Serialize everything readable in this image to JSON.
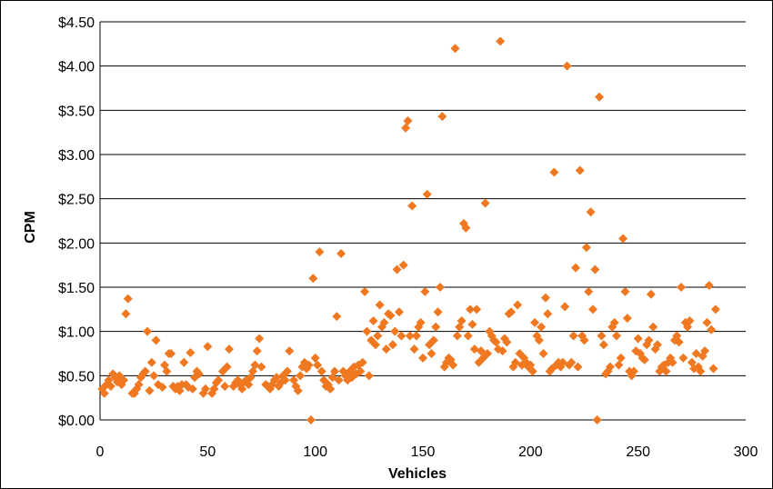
{
  "chart_data": {
    "type": "scatter",
    "title": "",
    "xlabel": "Vehicles",
    "ylabel": "CPM",
    "xlim": [
      0,
      300
    ],
    "ylim": [
      0,
      4.5
    ],
    "x_ticks": [
      0,
      50,
      100,
      150,
      200,
      250,
      300
    ],
    "x_tick_labels": [
      "0",
      "50",
      "100",
      "150",
      "200",
      "250",
      "300"
    ],
    "y_ticks": [
      0,
      0.5,
      1.0,
      1.5,
      2.0,
      2.5,
      3.0,
      3.5,
      4.0,
      4.5
    ],
    "y_tick_labels": [
      "$0.00",
      "$0.50",
      "$1.00",
      "$1.50",
      "$2.00",
      "$2.50",
      "$3.00",
      "$3.50",
      "$4.00",
      "$4.50"
    ],
    "grid": "horizontal",
    "marker_color": "#F07820",
    "marker_shape": "diamond",
    "points": [
      [
        1,
        0.35
      ],
      [
        2,
        0.3
      ],
      [
        3,
        0.4
      ],
      [
        4,
        0.45
      ],
      [
        5,
        0.38
      ],
      [
        6,
        0.52
      ],
      [
        7,
        0.48
      ],
      [
        8,
        0.43
      ],
      [
        9,
        0.5
      ],
      [
        10,
        0.4
      ],
      [
        11,
        0.45
      ],
      [
        12,
        1.2
      ],
      [
        13,
        1.37
      ],
      [
        15,
        0.3
      ],
      [
        16,
        0.3
      ],
      [
        17,
        0.35
      ],
      [
        18,
        0.4
      ],
      [
        19,
        0.48
      ],
      [
        20,
        0.52
      ],
      [
        21,
        0.55
      ],
      [
        22,
        1.0
      ],
      [
        23,
        0.33
      ],
      [
        24,
        0.65
      ],
      [
        25,
        0.5
      ],
      [
        26,
        0.9
      ],
      [
        27,
        0.4
      ],
      [
        29,
        0.37
      ],
      [
        30,
        0.62
      ],
      [
        31,
        0.55
      ],
      [
        32,
        0.75
      ],
      [
        33,
        0.75
      ],
      [
        34,
        0.38
      ],
      [
        35,
        0.35
      ],
      [
        36,
        0.38
      ],
      [
        37,
        0.33
      ],
      [
        38,
        0.4
      ],
      [
        39,
        0.65
      ],
      [
        40,
        0.4
      ],
      [
        41,
        0.37
      ],
      [
        42,
        0.76
      ],
      [
        43,
        0.35
      ],
      [
        44,
        0.48
      ],
      [
        45,
        0.55
      ],
      [
        46,
        0.52
      ],
      [
        48,
        0.3
      ],
      [
        49,
        0.35
      ],
      [
        50,
        0.83
      ],
      [
        52,
        0.3
      ],
      [
        53,
        0.35
      ],
      [
        54,
        0.42
      ],
      [
        55,
        0.45
      ],
      [
        57,
        0.55
      ],
      [
        58,
        0.38
      ],
      [
        59,
        0.6
      ],
      [
        60,
        0.8
      ],
      [
        62,
        0.38
      ],
      [
        63,
        0.42
      ],
      [
        64,
        0.45
      ],
      [
        65,
        0.4
      ],
      [
        66,
        0.35
      ],
      [
        67,
        0.43
      ],
      [
        68,
        0.45
      ],
      [
        69,
        0.4
      ],
      [
        70,
        0.48
      ],
      [
        71,
        0.55
      ],
      [
        72,
        0.62
      ],
      [
        73,
        0.78
      ],
      [
        74,
        0.92
      ],
      [
        75,
        0.6
      ],
      [
        77,
        0.4
      ],
      [
        78,
        0.38
      ],
      [
        79,
        0.35
      ],
      [
        80,
        0.4
      ],
      [
        81,
        0.45
      ],
      [
        82,
        0.48
      ],
      [
        83,
        0.38
      ],
      [
        84,
        0.42
      ],
      [
        85,
        0.5
      ],
      [
        86,
        0.45
      ],
      [
        87,
        0.55
      ],
      [
        88,
        0.78
      ],
      [
        90,
        0.45
      ],
      [
        91,
        0.38
      ],
      [
        92,
        0.33
      ],
      [
        93,
        0.5
      ],
      [
        94,
        0.6
      ],
      [
        95,
        0.65
      ],
      [
        96,
        0.58
      ],
      [
        97,
        0.62
      ],
      [
        98,
        0.0
      ],
      [
        99,
        1.6
      ],
      [
        100,
        0.7
      ],
      [
        101,
        0.62
      ],
      [
        102,
        1.9
      ],
      [
        103,
        0.55
      ],
      [
        104,
        0.45
      ],
      [
        105,
        0.38
      ],
      [
        106,
        0.4
      ],
      [
        107,
        0.35
      ],
      [
        108,
        0.48
      ],
      [
        109,
        0.55
      ],
      [
        110,
        1.17
      ],
      [
        111,
        0.45
      ],
      [
        112,
        1.88
      ],
      [
        113,
        0.55
      ],
      [
        114,
        0.5
      ],
      [
        115,
        0.45
      ],
      [
        116,
        0.55
      ],
      [
        117,
        0.48
      ],
      [
        118,
        0.6
      ],
      [
        119,
        0.52
      ],
      [
        120,
        0.62
      ],
      [
        121,
        0.55
      ],
      [
        122,
        0.65
      ],
      [
        123,
        1.45
      ],
      [
        124,
        1.0
      ],
      [
        125,
        0.5
      ],
      [
        126,
        0.9
      ],
      [
        127,
        1.12
      ],
      [
        128,
        0.85
      ],
      [
        129,
        0.95
      ],
      [
        130,
        1.3
      ],
      [
        131,
        1.05
      ],
      [
        132,
        1.1
      ],
      [
        133,
        0.8
      ],
      [
        134,
        1.2
      ],
      [
        135,
        1.18
      ],
      [
        136,
        0.85
      ],
      [
        137,
        1.0
      ],
      [
        138,
        1.7
      ],
      [
        139,
        1.22
      ],
      [
        140,
        0.95
      ],
      [
        141,
        1.75
      ],
      [
        142,
        3.3
      ],
      [
        143,
        3.38
      ],
      [
        144,
        0.95
      ],
      [
        145,
        2.42
      ],
      [
        146,
        0.8
      ],
      [
        147,
        0.95
      ],
      [
        148,
        1.05
      ],
      [
        149,
        1.1
      ],
      [
        150,
        0.7
      ],
      [
        151,
        1.45
      ],
      [
        152,
        2.55
      ],
      [
        153,
        0.85
      ],
      [
        154,
        0.75
      ],
      [
        155,
        0.9
      ],
      [
        156,
        1.05
      ],
      [
        157,
        1.22
      ],
      [
        158,
        1.5
      ],
      [
        159,
        3.43
      ],
      [
        160,
        0.6
      ],
      [
        161,
        0.65
      ],
      [
        162,
        0.7
      ],
      [
        163,
        0.68
      ],
      [
        164,
        0.62
      ],
      [
        165,
        4.2
      ],
      [
        166,
        0.95
      ],
      [
        167,
        1.05
      ],
      [
        168,
        1.12
      ],
      [
        169,
        2.22
      ],
      [
        170,
        2.17
      ],
      [
        171,
        0.95
      ],
      [
        172,
        1.25
      ],
      [
        173,
        1.08
      ],
      [
        174,
        0.8
      ],
      [
        175,
        1.25
      ],
      [
        176,
        0.65
      ],
      [
        177,
        0.78
      ],
      [
        178,
        0.7
      ],
      [
        179,
        2.45
      ],
      [
        180,
        0.75
      ],
      [
        181,
        1.0
      ],
      [
        182,
        0.95
      ],
      [
        183,
        0.9
      ],
      [
        184,
        0.88
      ],
      [
        185,
        0.8
      ],
      [
        186,
        4.28
      ],
      [
        187,
        0.78
      ],
      [
        188,
        0.92
      ],
      [
        189,
        0.88
      ],
      [
        190,
        1.2
      ],
      [
        191,
        1.22
      ],
      [
        192,
        0.6
      ],
      [
        193,
        0.65
      ],
      [
        194,
        1.3
      ],
      [
        195,
        0.75
      ],
      [
        196,
        0.62
      ],
      [
        197,
        0.7
      ],
      [
        198,
        0.65
      ],
      [
        199,
        0.6
      ],
      [
        200,
        0.62
      ],
      [
        201,
        0.55
      ],
      [
        202,
        1.1
      ],
      [
        203,
        0.95
      ],
      [
        204,
        0.9
      ],
      [
        205,
        1.05
      ],
      [
        206,
        0.75
      ],
      [
        207,
        1.38
      ],
      [
        208,
        1.2
      ],
      [
        209,
        0.55
      ],
      [
        210,
        0.58
      ],
      [
        211,
        2.8
      ],
      [
        212,
        0.62
      ],
      [
        213,
        0.65
      ],
      [
        214,
        0.6
      ],
      [
        215,
        0.65
      ],
      [
        216,
        1.28
      ],
      [
        217,
        4.0
      ],
      [
        218,
        0.62
      ],
      [
        219,
        0.65
      ],
      [
        220,
        0.95
      ],
      [
        221,
        1.72
      ],
      [
        222,
        0.6
      ],
      [
        223,
        2.82
      ],
      [
        224,
        0.95
      ],
      [
        225,
        0.9
      ],
      [
        226,
        1.95
      ],
      [
        227,
        1.45
      ],
      [
        228,
        2.35
      ],
      [
        229,
        1.25
      ],
      [
        230,
        1.7
      ],
      [
        231,
        0.0
      ],
      [
        232,
        3.65
      ],
      [
        233,
        0.95
      ],
      [
        234,
        0.85
      ],
      [
        235,
        0.52
      ],
      [
        236,
        0.55
      ],
      [
        237,
        0.6
      ],
      [
        238,
        1.05
      ],
      [
        239,
        1.1
      ],
      [
        240,
        0.95
      ],
      [
        241,
        0.62
      ],
      [
        242,
        0.7
      ],
      [
        243,
        2.05
      ],
      [
        244,
        1.45
      ],
      [
        245,
        1.15
      ],
      [
        246,
        0.55
      ],
      [
        247,
        0.5
      ],
      [
        248,
        0.55
      ],
      [
        249,
        0.78
      ],
      [
        250,
        0.92
      ],
      [
        251,
        0.75
      ],
      [
        252,
        0.7
      ],
      [
        253,
        0.68
      ],
      [
        254,
        0.85
      ],
      [
        255,
        0.9
      ],
      [
        256,
        1.42
      ],
      [
        257,
        1.05
      ],
      [
        258,
        0.8
      ],
      [
        259,
        0.85
      ],
      [
        260,
        0.55
      ],
      [
        261,
        0.6
      ],
      [
        262,
        0.62
      ],
      [
        263,
        0.55
      ],
      [
        264,
        0.65
      ],
      [
        265,
        0.7
      ],
      [
        266,
        0.65
      ],
      [
        267,
        0.9
      ],
      [
        268,
        0.95
      ],
      [
        269,
        0.88
      ],
      [
        270,
        1.5
      ],
      [
        271,
        0.7
      ],
      [
        272,
        1.1
      ],
      [
        273,
        1.05
      ],
      [
        274,
        1.12
      ],
      [
        275,
        0.65
      ],
      [
        276,
        0.58
      ],
      [
        277,
        0.75
      ],
      [
        278,
        0.6
      ],
      [
        279,
        0.55
      ],
      [
        280,
        0.72
      ],
      [
        281,
        0.78
      ],
      [
        282,
        1.1
      ],
      [
        283,
        1.52
      ],
      [
        284,
        1.02
      ],
      [
        285,
        0.58
      ],
      [
        286,
        1.25
      ]
    ]
  }
}
